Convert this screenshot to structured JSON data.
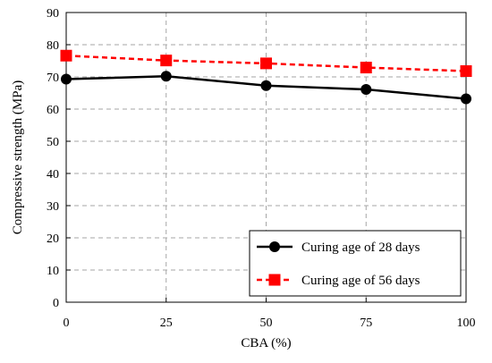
{
  "chart_data": {
    "type": "line",
    "title": "",
    "xlabel": "CBA (%)",
    "ylabel": "Compressive strength (MPa)",
    "x": [
      0,
      25,
      50,
      75,
      100
    ],
    "xlim": [
      0,
      100
    ],
    "ylim": [
      0,
      90
    ],
    "xticks": [
      "0",
      "25",
      "50",
      "75",
      "100"
    ],
    "yticks": [
      "0",
      "10",
      "20",
      "30",
      "40",
      "50",
      "60",
      "70",
      "80",
      "90"
    ],
    "grid": true,
    "legend_position": "bottom-right",
    "series": [
      {
        "name": "Curing age of 28 days",
        "values": [
          69.3,
          70.2,
          67.3,
          66.1,
          63.2
        ],
        "color": "#000000",
        "line_style": "solid",
        "marker": "circle"
      },
      {
        "name": "Curing age of 56 days",
        "values": [
          76.6,
          75.1,
          74.2,
          72.9,
          71.8
        ],
        "color": "#ff0000",
        "line_style": "dashed",
        "marker": "square"
      }
    ]
  }
}
